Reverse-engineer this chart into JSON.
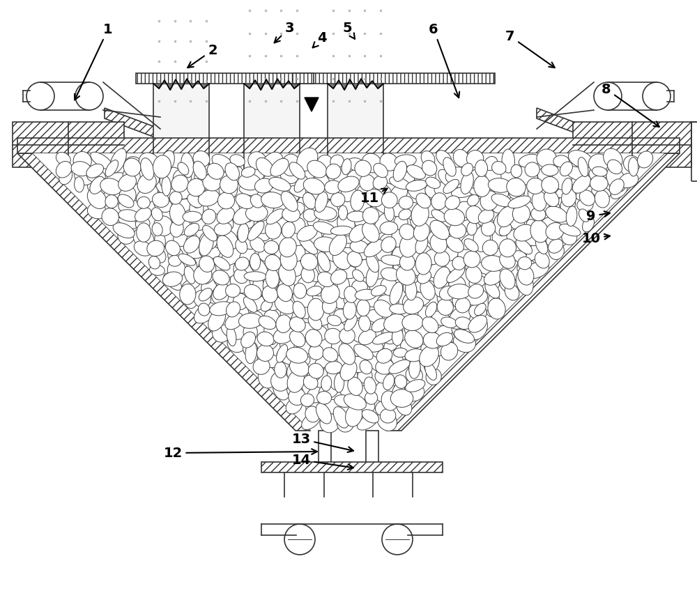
{
  "bg_color": "#ffffff",
  "line_color": "#333333",
  "lw": 1.2,
  "fig_w": 10.0,
  "fig_h": 8.51,
  "dpi": 100,
  "labels": {
    "1": [
      155,
      42,
      105,
      148
    ],
    "2": [
      305,
      72,
      265,
      100
    ],
    "3": [
      415,
      40,
      390,
      65
    ],
    "4": [
      462,
      55,
      445,
      72
    ],
    "5": [
      498,
      40,
      512,
      60
    ],
    "6": [
      622,
      42,
      660,
      145
    ],
    "7": [
      732,
      52,
      800,
      100
    ],
    "8": [
      870,
      128,
      950,
      185
    ],
    "9": [
      848,
      310,
      880,
      305
    ],
    "10": [
      848,
      342,
      880,
      338
    ],
    "11": [
      530,
      285,
      560,
      268
    ],
    "12": [
      248,
      650,
      460,
      648
    ],
    "13": [
      432,
      630,
      512,
      648
    ],
    "14": [
      432,
      660,
      512,
      672
    ]
  }
}
